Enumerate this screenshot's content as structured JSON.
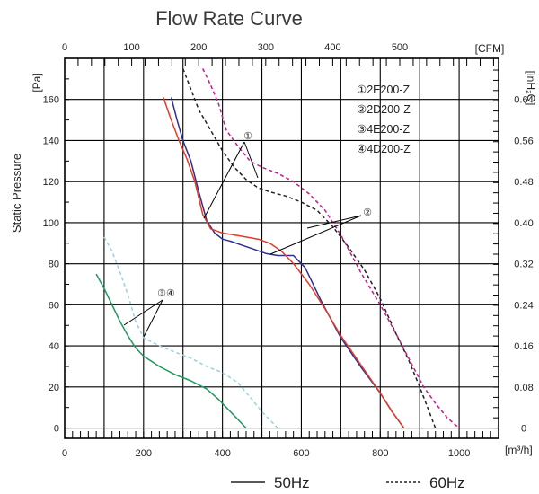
{
  "chart_data": {
    "type": "line",
    "title": "Flow Rate Curve",
    "xlabel": "[m³/h]",
    "x_top_label": "[CFM]",
    "ylabel": "Static Pressure",
    "y_unit": "[Pa]",
    "y_right_label": "[inH₂O]",
    "xlim": [
      0,
      1100
    ],
    "ylim": [
      -5,
      180
    ],
    "x_ticks": [
      0,
      200,
      400,
      600,
      800,
      1000
    ],
    "x_top_ticks": [
      0,
      100,
      200,
      300,
      400,
      500
    ],
    "y_ticks": [
      0,
      20,
      40,
      60,
      80,
      100,
      120,
      140,
      160
    ],
    "y_right_ticks": [
      "0",
      "0.08",
      "0.16",
      "0.24",
      "0.32",
      "0.40",
      "0.48",
      "0.56",
      "0.64"
    ],
    "grid": true,
    "legend_models": [
      "①2E200-Z",
      "②2D200-Z",
      "③4E200-Z",
      "④4D200-Z"
    ],
    "legend_lines": [
      "50Hz",
      "60Hz"
    ],
    "series": [
      {
        "name": "①2E200-Z",
        "frequency": "50Hz",
        "color": "#2d2f8f",
        "dashed": false,
        "x": [
          270,
          285,
          300,
          320,
          340,
          360,
          380,
          400,
          420,
          450,
          480,
          510,
          540,
          560,
          580,
          610,
          650,
          700,
          750,
          800,
          830,
          860
        ],
        "y": [
          161,
          150,
          140,
          130,
          115,
          101,
          95,
          92,
          91,
          89,
          87,
          85,
          84,
          84,
          84,
          78,
          62,
          44,
          30,
          17,
          8,
          0
        ]
      },
      {
        "name": "②2D200-Z",
        "frequency": "50Hz",
        "color": "#e03c2a",
        "dashed": false,
        "x": [
          250,
          270,
          290,
          310,
          330,
          350,
          370,
          400,
          430,
          460,
          490,
          520,
          550,
          580,
          620,
          660,
          700,
          750,
          800,
          830,
          860
        ],
        "y": [
          161,
          150,
          140,
          131,
          120,
          104,
          97,
          95,
          94,
          93,
          92,
          90,
          86,
          80,
          70,
          58,
          45,
          31,
          17,
          8,
          0
        ]
      },
      {
        "name": "①2E200-Z",
        "frequency": "60Hz",
        "color": "#222222",
        "dashed": true,
        "x": [
          300,
          320,
          340,
          370,
          400,
          430,
          460,
          490,
          520,
          560,
          600,
          640,
          680,
          720,
          760,
          800,
          840,
          870,
          900,
          920,
          940
        ],
        "y": [
          175,
          165,
          155,
          145,
          135,
          127,
          121,
          117,
          115,
          113,
          110,
          106,
          98,
          88,
          77,
          63,
          46,
          34,
          20,
          10,
          0
        ]
      },
      {
        "name": "②2D200-Z",
        "frequency": "60Hz",
        "color": "#c41a8c",
        "dashed": true,
        "x": [
          350,
          370,
          390,
          410,
          440,
          470,
          500,
          540,
          580,
          620,
          660,
          700,
          750,
          800,
          840,
          880,
          910,
          940,
          970,
          1000
        ],
        "y": [
          175,
          167,
          158,
          145,
          137,
          130,
          127,
          124,
          120,
          114,
          106,
          94,
          76,
          60,
          46,
          31,
          20,
          12,
          5,
          0
        ]
      },
      {
        "name": "③4E200-Z",
        "frequency": "50Hz",
        "color": "#1b9a5a",
        "dashed": false,
        "x": [
          80,
          100,
          120,
          140,
          160,
          180,
          200,
          240,
          280,
          320,
          360,
          390,
          410,
          430,
          450,
          460
        ],
        "y": [
          75,
          68,
          60,
          52,
          45,
          39,
          35,
          30,
          26,
          23,
          19,
          14,
          10,
          6,
          2,
          0
        ]
      },
      {
        "name": "④4D200-Z",
        "frequency": "60Hz",
        "color": "#9ed0de",
        "dashed": true,
        "x": [
          100,
          120,
          140,
          160,
          180,
          200,
          240,
          280,
          320,
          360,
          400,
          440,
          470,
          500,
          520,
          540
        ],
        "y": [
          93,
          86,
          76,
          65,
          52,
          44,
          40,
          37,
          34,
          30,
          27,
          22,
          15,
          8,
          4,
          0
        ]
      }
    ],
    "annotations": [
      "①",
      "②",
      "③④"
    ]
  }
}
